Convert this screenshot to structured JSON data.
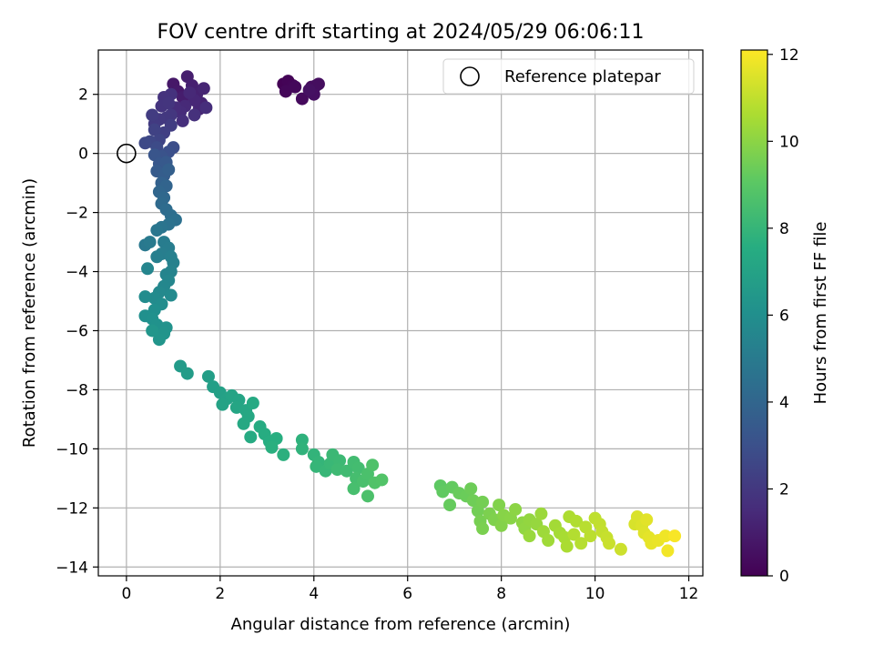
{
  "chart_data": {
    "type": "scatter",
    "title": "FOV centre drift starting at 2024/05/29 06:06:11",
    "xlabel": "Angular distance from reference (arcmin)",
    "ylabel": "Rotation from reference (arcmin)",
    "xlim": [
      -0.6,
      12.3
    ],
    "ylim": [
      -14.3,
      3.5
    ],
    "xticks": [
      0,
      2,
      4,
      6,
      8,
      10,
      12
    ],
    "xtick_labels": [
      "0",
      "2",
      "4",
      "6",
      "8",
      "10",
      "12"
    ],
    "yticks": [
      -14,
      -12,
      -10,
      -8,
      -6,
      -4,
      -2,
      0,
      2
    ],
    "ytick_labels": [
      "−14",
      "−12",
      "−10",
      "−8",
      "−6",
      "−4",
      "−2",
      "0",
      "2"
    ],
    "grid": true,
    "legend": {
      "position": "top-right",
      "entries": [
        "Reference platepar"
      ]
    },
    "reference_point": {
      "x": 0,
      "y": 0,
      "marker": "open-circle"
    },
    "colorbar": {
      "label": "Hours from first FF file",
      "range": [
        0,
        12.1
      ],
      "ticks": [
        0,
        2,
        4,
        6,
        8,
        10,
        12
      ],
      "tick_labels": [
        "0",
        "2",
        "4",
        "6",
        "8",
        "10",
        "12"
      ],
      "colormap": "viridis"
    },
    "series": [
      {
        "color_by": "hours",
        "points": [
          {
            "x": 3.35,
            "y": 2.35,
            "c": 0.05
          },
          {
            "x": 3.45,
            "y": 2.45,
            "c": 0.1
          },
          {
            "x": 3.55,
            "y": 2.3,
            "c": 0.15
          },
          {
            "x": 3.4,
            "y": 2.1,
            "c": 0.2
          },
          {
            "x": 3.6,
            "y": 2.25,
            "c": 0.25
          },
          {
            "x": 3.75,
            "y": 1.85,
            "c": 0.3
          },
          {
            "x": 3.95,
            "y": 2.25,
            "c": 0.35
          },
          {
            "x": 4.05,
            "y": 2.3,
            "c": 0.4
          },
          {
            "x": 4.1,
            "y": 2.35,
            "c": 0.45
          },
          {
            "x": 4.0,
            "y": 2.0,
            "c": 0.5
          },
          {
            "x": 3.9,
            "y": 2.15,
            "c": 0.55
          },
          {
            "x": 1.0,
            "y": 2.35,
            "c": 0.8
          },
          {
            "x": 1.1,
            "y": 2.1,
            "c": 0.85
          },
          {
            "x": 1.2,
            "y": 1.9,
            "c": 1.0
          },
          {
            "x": 1.3,
            "y": 2.6,
            "c": 1.05
          },
          {
            "x": 1.4,
            "y": 2.3,
            "c": 1.1
          },
          {
            "x": 1.5,
            "y": 2.0,
            "c": 1.15
          },
          {
            "x": 1.6,
            "y": 1.7,
            "c": 1.2
          },
          {
            "x": 1.65,
            "y": 2.2,
            "c": 1.25
          },
          {
            "x": 1.55,
            "y": 1.5,
            "c": 1.3
          },
          {
            "x": 1.45,
            "y": 1.8,
            "c": 1.35
          },
          {
            "x": 1.35,
            "y": 2.05,
            "c": 1.4
          },
          {
            "x": 1.25,
            "y": 1.6,
            "c": 1.45
          },
          {
            "x": 1.15,
            "y": 1.4,
            "c": 1.5
          },
          {
            "x": 1.05,
            "y": 1.55,
            "c": 1.55
          },
          {
            "x": 1.7,
            "y": 1.55,
            "c": 1.6
          },
          {
            "x": 1.2,
            "y": 1.1,
            "c": 1.65
          },
          {
            "x": 1.45,
            "y": 1.3,
            "c": 1.7
          },
          {
            "x": 0.95,
            "y": 2.0,
            "c": 1.75
          },
          {
            "x": 0.8,
            "y": 1.9,
            "c": 1.8
          },
          {
            "x": 0.75,
            "y": 1.6,
            "c": 1.85
          },
          {
            "x": 0.9,
            "y": 1.7,
            "c": 1.9
          },
          {
            "x": 0.95,
            "y": 1.3,
            "c": 1.95
          },
          {
            "x": 0.85,
            "y": 1.2,
            "c": 2.0
          },
          {
            "x": 0.7,
            "y": 1.15,
            "c": 2.05
          },
          {
            "x": 0.6,
            "y": 1.0,
            "c": 2.1
          },
          {
            "x": 0.55,
            "y": 1.3,
            "c": 2.15
          },
          {
            "x": 0.95,
            "y": 0.95,
            "c": 2.2
          },
          {
            "x": 0.8,
            "y": 0.7,
            "c": 2.3
          },
          {
            "x": 0.6,
            "y": 0.8,
            "c": 2.4
          },
          {
            "x": 0.7,
            "y": 0.45,
            "c": 2.5
          },
          {
            "x": 0.5,
            "y": 0.4,
            "c": 2.6
          },
          {
            "x": 0.4,
            "y": 0.35,
            "c": 2.7
          },
          {
            "x": 0.65,
            "y": 0.2,
            "c": 2.8
          },
          {
            "x": 1.0,
            "y": 0.2,
            "c": 2.9
          },
          {
            "x": 0.9,
            "y": 0.05,
            "c": 3.0
          },
          {
            "x": 0.75,
            "y": -0.1,
            "c": 3.1
          },
          {
            "x": 0.6,
            "y": -0.05,
            "c": 3.2
          },
          {
            "x": 0.7,
            "y": -0.35,
            "c": 3.3
          },
          {
            "x": 0.85,
            "y": -0.3,
            "c": 3.4
          },
          {
            "x": 0.65,
            "y": -0.6,
            "c": 3.5
          },
          {
            "x": 0.8,
            "y": -0.75,
            "c": 3.6
          },
          {
            "x": 0.9,
            "y": -0.55,
            "c": 3.7
          },
          {
            "x": 0.75,
            "y": -1.0,
            "c": 3.8
          },
          {
            "x": 0.85,
            "y": -1.1,
            "c": 3.9
          },
          {
            "x": 0.7,
            "y": -1.3,
            "c": 4.0
          },
          {
            "x": 0.8,
            "y": -1.5,
            "c": 4.1
          },
          {
            "x": 0.75,
            "y": -1.7,
            "c": 4.2
          },
          {
            "x": 0.85,
            "y": -1.9,
            "c": 4.3
          },
          {
            "x": 0.95,
            "y": -2.1,
            "c": 4.4
          },
          {
            "x": 1.05,
            "y": -2.25,
            "c": 4.5
          },
          {
            "x": 0.9,
            "y": -2.4,
            "c": 4.6
          },
          {
            "x": 0.75,
            "y": -2.5,
            "c": 4.7
          },
          {
            "x": 0.65,
            "y": -2.6,
            "c": 4.8
          },
          {
            "x": 0.4,
            "y": -3.1,
            "c": 4.9
          },
          {
            "x": 0.5,
            "y": -3.0,
            "c": 5.0
          },
          {
            "x": 0.8,
            "y": -3.0,
            "c": 5.05
          },
          {
            "x": 0.9,
            "y": -3.2,
            "c": 5.1
          },
          {
            "x": 0.75,
            "y": -3.4,
            "c": 5.15
          },
          {
            "x": 0.65,
            "y": -3.5,
            "c": 5.2
          },
          {
            "x": 0.95,
            "y": -3.5,
            "c": 5.25
          },
          {
            "x": 1.0,
            "y": -3.7,
            "c": 5.3
          },
          {
            "x": 0.95,
            "y": -4.0,
            "c": 5.4
          },
          {
            "x": 0.85,
            "y": -4.1,
            "c": 5.45
          },
          {
            "x": 0.45,
            "y": -3.9,
            "c": 5.5
          },
          {
            "x": 0.9,
            "y": -4.3,
            "c": 5.55
          },
          {
            "x": 0.8,
            "y": -4.5,
            "c": 5.6
          },
          {
            "x": 0.7,
            "y": -4.7,
            "c": 5.7
          },
          {
            "x": 0.95,
            "y": -4.8,
            "c": 5.75
          },
          {
            "x": 0.6,
            "y": -4.9,
            "c": 5.8
          },
          {
            "x": 0.4,
            "y": -4.85,
            "c": 5.85
          },
          {
            "x": 0.75,
            "y": -5.1,
            "c": 5.9
          },
          {
            "x": 0.6,
            "y": -5.3,
            "c": 6.0
          },
          {
            "x": 0.4,
            "y": -5.5,
            "c": 6.05
          },
          {
            "x": 0.55,
            "y": -5.6,
            "c": 6.1
          },
          {
            "x": 0.65,
            "y": -5.8,
            "c": 6.15
          },
          {
            "x": 0.85,
            "y": -5.9,
            "c": 6.2
          },
          {
            "x": 0.8,
            "y": -6.1,
            "c": 6.25
          },
          {
            "x": 0.7,
            "y": -6.3,
            "c": 6.3
          },
          {
            "x": 0.55,
            "y": -6.0,
            "c": 6.35
          },
          {
            "x": 1.15,
            "y": -7.2,
            "c": 6.6
          },
          {
            "x": 1.3,
            "y": -7.45,
            "c": 6.7
          },
          {
            "x": 1.75,
            "y": -7.55,
            "c": 6.8
          },
          {
            "x": 1.85,
            "y": -7.9,
            "c": 6.85
          },
          {
            "x": 2.0,
            "y": -8.1,
            "c": 6.9
          },
          {
            "x": 2.15,
            "y": -8.3,
            "c": 6.95
          },
          {
            "x": 2.05,
            "y": -8.5,
            "c": 7.0
          },
          {
            "x": 2.25,
            "y": -8.2,
            "c": 7.05
          },
          {
            "x": 2.4,
            "y": -8.35,
            "c": 7.1
          },
          {
            "x": 2.35,
            "y": -8.6,
            "c": 7.15
          },
          {
            "x": 2.55,
            "y": -8.7,
            "c": 7.2
          },
          {
            "x": 2.6,
            "y": -8.9,
            "c": 7.25
          },
          {
            "x": 2.5,
            "y": -9.15,
            "c": 7.3
          },
          {
            "x": 2.7,
            "y": -8.45,
            "c": 7.35
          },
          {
            "x": 2.65,
            "y": -9.6,
            "c": 7.4
          },
          {
            "x": 2.85,
            "y": -9.25,
            "c": 7.45
          },
          {
            "x": 2.95,
            "y": -9.5,
            "c": 7.5
          },
          {
            "x": 3.05,
            "y": -9.75,
            "c": 7.55
          },
          {
            "x": 3.2,
            "y": -9.65,
            "c": 7.6
          },
          {
            "x": 3.1,
            "y": -9.95,
            "c": 7.65
          },
          {
            "x": 3.35,
            "y": -10.2,
            "c": 7.7
          },
          {
            "x": 3.75,
            "y": -9.7,
            "c": 7.8
          },
          {
            "x": 3.75,
            "y": -10.0,
            "c": 7.85
          },
          {
            "x": 4.0,
            "y": -10.2,
            "c": 7.9
          },
          {
            "x": 4.1,
            "y": -10.45,
            "c": 7.95
          },
          {
            "x": 4.05,
            "y": -10.6,
            "c": 8.0
          },
          {
            "x": 4.25,
            "y": -10.75,
            "c": 8.05
          },
          {
            "x": 4.35,
            "y": -10.5,
            "c": 8.1
          },
          {
            "x": 4.4,
            "y": -10.2,
            "c": 8.15
          },
          {
            "x": 4.55,
            "y": -10.4,
            "c": 8.2
          },
          {
            "x": 4.5,
            "y": -10.7,
            "c": 8.25
          },
          {
            "x": 4.7,
            "y": -10.75,
            "c": 8.3
          },
          {
            "x": 4.85,
            "y": -10.45,
            "c": 8.35
          },
          {
            "x": 4.95,
            "y": -10.65,
            "c": 8.4
          },
          {
            "x": 4.9,
            "y": -11.0,
            "c": 8.45
          },
          {
            "x": 4.85,
            "y": -11.35,
            "c": 8.5
          },
          {
            "x": 5.05,
            "y": -11.1,
            "c": 8.55
          },
          {
            "x": 5.15,
            "y": -10.85,
            "c": 8.6
          },
          {
            "x": 5.15,
            "y": -11.6,
            "c": 8.65
          },
          {
            "x": 5.25,
            "y": -10.55,
            "c": 8.7
          },
          {
            "x": 5.3,
            "y": -11.15,
            "c": 8.75
          },
          {
            "x": 5.45,
            "y": -11.05,
            "c": 8.8
          },
          {
            "x": 6.7,
            "y": -11.25,
            "c": 9.1
          },
          {
            "x": 6.75,
            "y": -11.45,
            "c": 9.15
          },
          {
            "x": 6.95,
            "y": -11.3,
            "c": 9.2
          },
          {
            "x": 6.9,
            "y": -11.9,
            "c": 9.25
          },
          {
            "x": 7.1,
            "y": -11.5,
            "c": 9.3
          },
          {
            "x": 7.25,
            "y": -11.6,
            "c": 9.35
          },
          {
            "x": 7.35,
            "y": -11.35,
            "c": 9.4
          },
          {
            "x": 7.4,
            "y": -11.75,
            "c": 9.45
          },
          {
            "x": 7.5,
            "y": -12.1,
            "c": 9.5
          },
          {
            "x": 7.6,
            "y": -11.8,
            "c": 9.55
          },
          {
            "x": 7.55,
            "y": -12.45,
            "c": 9.6
          },
          {
            "x": 7.6,
            "y": -12.7,
            "c": 9.65
          },
          {
            "x": 7.75,
            "y": -12.2,
            "c": 9.7
          },
          {
            "x": 7.85,
            "y": -12.4,
            "c": 9.75
          },
          {
            "x": 7.95,
            "y": -11.9,
            "c": 9.8
          },
          {
            "x": 8.0,
            "y": -12.6,
            "c": 9.85
          },
          {
            "x": 8.05,
            "y": -12.25,
            "c": 9.9
          },
          {
            "x": 8.2,
            "y": -12.35,
            "c": 9.95
          },
          {
            "x": 8.3,
            "y": -12.05,
            "c": 10.0
          },
          {
            "x": 8.45,
            "y": -12.5,
            "c": 10.05
          },
          {
            "x": 8.5,
            "y": -12.7,
            "c": 10.1
          },
          {
            "x": 8.6,
            "y": -12.4,
            "c": 10.15
          },
          {
            "x": 8.75,
            "y": -12.55,
            "c": 10.2
          },
          {
            "x": 8.6,
            "y": -12.95,
            "c": 10.25
          },
          {
            "x": 8.85,
            "y": -12.2,
            "c": 10.3
          },
          {
            "x": 8.9,
            "y": -12.8,
            "c": 10.35
          },
          {
            "x": 9.0,
            "y": -13.1,
            "c": 10.4
          },
          {
            "x": 9.15,
            "y": -12.6,
            "c": 10.45
          },
          {
            "x": 9.25,
            "y": -12.85,
            "c": 10.5
          },
          {
            "x": 9.35,
            "y": -13.0,
            "c": 10.55
          },
          {
            "x": 9.4,
            "y": -13.3,
            "c": 10.6
          },
          {
            "x": 9.45,
            "y": -12.3,
            "c": 10.65
          },
          {
            "x": 9.6,
            "y": -12.45,
            "c": 10.7
          },
          {
            "x": 9.55,
            "y": -12.9,
            "c": 10.75
          },
          {
            "x": 9.7,
            "y": -13.2,
            "c": 10.8
          },
          {
            "x": 9.8,
            "y": -12.65,
            "c": 10.85
          },
          {
            "x": 9.9,
            "y": -12.95,
            "c": 10.9
          },
          {
            "x": 10.0,
            "y": -12.35,
            "c": 10.95
          },
          {
            "x": 10.1,
            "y": -12.55,
            "c": 11.0
          },
          {
            "x": 10.15,
            "y": -12.8,
            "c": 11.05
          },
          {
            "x": 10.25,
            "y": -13.0,
            "c": 11.1
          },
          {
            "x": 10.3,
            "y": -13.2,
            "c": 11.15
          },
          {
            "x": 10.55,
            "y": -13.4,
            "c": 11.2
          },
          {
            "x": 10.85,
            "y": -12.55,
            "c": 11.4
          },
          {
            "x": 10.9,
            "y": -12.3,
            "c": 11.45
          },
          {
            "x": 11.0,
            "y": -12.6,
            "c": 11.5
          },
          {
            "x": 11.05,
            "y": -12.85,
            "c": 11.55
          },
          {
            "x": 11.1,
            "y": -12.4,
            "c": 11.6
          },
          {
            "x": 11.15,
            "y": -13.0,
            "c": 11.65
          },
          {
            "x": 11.2,
            "y": -13.2,
            "c": 11.7
          },
          {
            "x": 11.35,
            "y": -13.1,
            "c": 11.75
          },
          {
            "x": 11.5,
            "y": -12.95,
            "c": 11.85
          },
          {
            "x": 11.55,
            "y": -13.45,
            "c": 11.9
          },
          {
            "x": 11.7,
            "y": -12.95,
            "c": 12.0
          }
        ]
      }
    ]
  }
}
